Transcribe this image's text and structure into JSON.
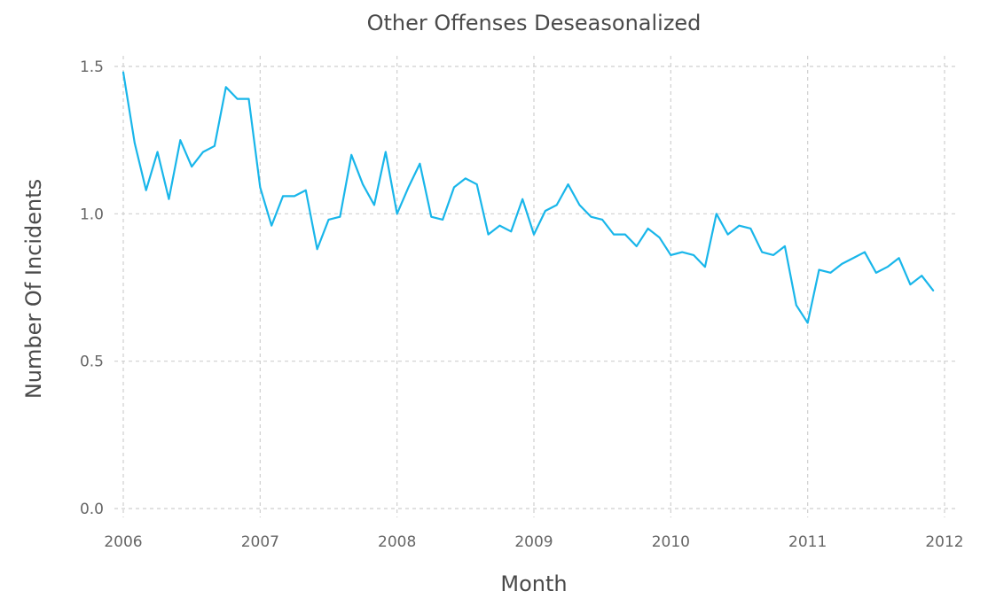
{
  "chart_data": {
    "type": "line",
    "title": "Other Offenses Deseasonalized",
    "xlabel": "Month",
    "ylabel": "Number Of Incidents",
    "x_ticks": [
      "2006",
      "2007",
      "2008",
      "2009",
      "2010",
      "2011",
      "2012"
    ],
    "y_ticks": [
      "0.0",
      "0.5",
      "1.0",
      "1.5"
    ],
    "xlim": [
      2006,
      2012
    ],
    "ylim": [
      0,
      1.5
    ],
    "grid": true,
    "colors": {
      "series": "#19b6ea",
      "grid": "#cfcfcf",
      "text": "#4a4a4a"
    },
    "series": [
      {
        "x": [
          "2006-01",
          "2006-02",
          "2006-03",
          "2006-04",
          "2006-05",
          "2006-06",
          "2006-07",
          "2006-08",
          "2006-09",
          "2006-10",
          "2006-11",
          "2006-12",
          "2007-01",
          "2007-02",
          "2007-03",
          "2007-04",
          "2007-05",
          "2007-06",
          "2007-07",
          "2007-08",
          "2007-09",
          "2007-10",
          "2007-11",
          "2007-12",
          "2008-01",
          "2008-02",
          "2008-03",
          "2008-04",
          "2008-05",
          "2008-06",
          "2008-07",
          "2008-08",
          "2008-09",
          "2008-10",
          "2008-11",
          "2008-12",
          "2009-01",
          "2009-02",
          "2009-03",
          "2009-04",
          "2009-05",
          "2009-06",
          "2009-07",
          "2009-08",
          "2009-09",
          "2009-10",
          "2009-11",
          "2009-12",
          "2010-01",
          "2010-02",
          "2010-03",
          "2010-04",
          "2010-05",
          "2010-06",
          "2010-07",
          "2010-08",
          "2010-09",
          "2010-10",
          "2010-11",
          "2010-12",
          "2011-01",
          "2011-02",
          "2011-03",
          "2011-04",
          "2011-05",
          "2011-06",
          "2011-07",
          "2011-08",
          "2011-09",
          "2011-10",
          "2011-11",
          "2011-12"
        ],
        "values": [
          1.48,
          1.24,
          1.08,
          1.21,
          1.05,
          1.25,
          1.16,
          1.21,
          1.23,
          1.43,
          1.39,
          1.39,
          1.09,
          0.96,
          1.06,
          1.06,
          1.08,
          0.88,
          0.98,
          0.99,
          1.2,
          1.1,
          1.03,
          1.21,
          1.0,
          1.09,
          1.17,
          0.99,
          0.98,
          1.09,
          1.12,
          1.1,
          0.93,
          0.96,
          0.94,
          1.05,
          0.93,
          1.01,
          1.03,
          1.1,
          1.03,
          0.99,
          0.98,
          0.93,
          0.93,
          0.89,
          0.95,
          0.92,
          0.86,
          0.87,
          0.86,
          0.82,
          1.0,
          0.93,
          0.96,
          0.95,
          0.87,
          0.86,
          0.89,
          0.69,
          0.63,
          0.81,
          0.8,
          0.83,
          0.85,
          0.87,
          0.8,
          0.82,
          0.85,
          0.76,
          0.79,
          0.74
        ]
      }
    ]
  }
}
